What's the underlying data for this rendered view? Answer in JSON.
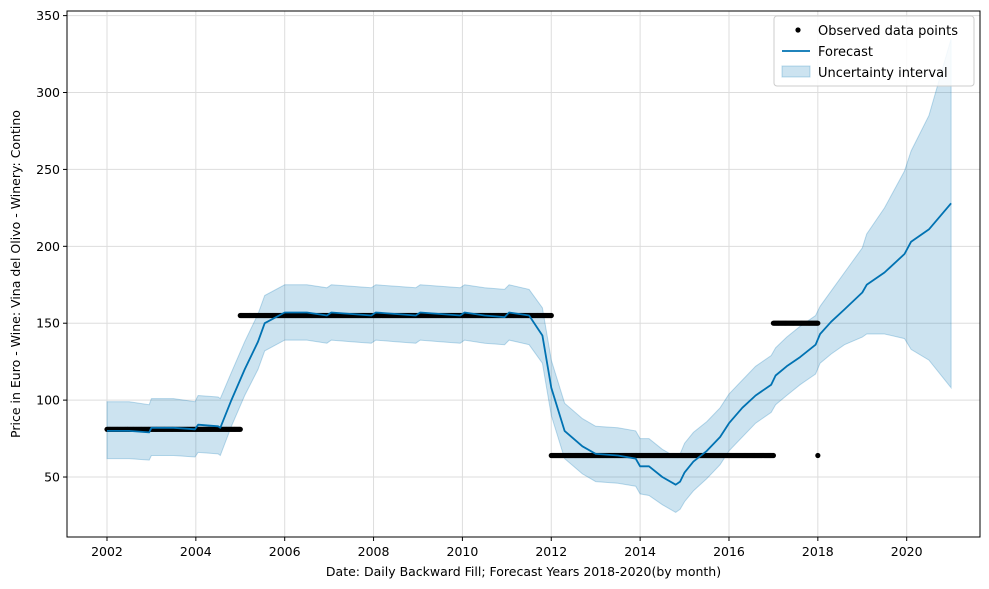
{
  "chart_data": {
    "type": "line",
    "title": "",
    "xlabel": "Date: Daily Backward Fill; Forecast Years 2018-2020(by month)",
    "ylabel": "Price in Euro - Wine: Vina del Olivo - Winery: Contino",
    "xlim": [
      2001.1,
      2021.65
    ],
    "ylim": [
      11,
      353
    ],
    "x_ticks": [
      2002,
      2004,
      2006,
      2008,
      2010,
      2012,
      2014,
      2016,
      2018,
      2020
    ],
    "x_tick_labels": [
      "2002",
      "2004",
      "2006",
      "2008",
      "2010",
      "2012",
      "2014",
      "2016",
      "2018",
      "2020"
    ],
    "y_ticks": [
      50,
      100,
      150,
      200,
      250,
      300,
      350
    ],
    "y_tick_labels": [
      "50",
      "100",
      "150",
      "200",
      "250",
      "300",
      "350"
    ],
    "grid": true,
    "legend_position": "top-right",
    "colors": {
      "observed": "#000000",
      "forecast": "#0072B2",
      "band_fill": "#0072B2",
      "grid": "#dddddd"
    },
    "series": [
      {
        "name": "Observed data points",
        "kind": "scatter",
        "segments": [
          {
            "x_start": 2002.0,
            "x_end": 2005.0,
            "y": 81
          },
          {
            "x_start": 2005.0,
            "x_end": 2012.0,
            "y": 155
          },
          {
            "x_start": 2012.0,
            "x_end": 2017.0,
            "y": 64
          },
          {
            "x_start": 2017.0,
            "x_end": 2018.0,
            "y": 150
          }
        ],
        "points": [
          {
            "x": 2018.0,
            "y": 64
          }
        ]
      },
      {
        "name": "Forecast",
        "kind": "line",
        "x": [
          2002.0,
          2002.5,
          2002.95,
          2003.0,
          2003.5,
          2003.98,
          2004.05,
          2004.5,
          2004.55,
          2004.8,
          2005.1,
          2005.4,
          2005.55,
          2006.0,
          2006.5,
          2006.95,
          2007.05,
          2007.5,
          2007.95,
          2008.05,
          2008.5,
          2008.95,
          2009.05,
          2009.5,
          2009.95,
          2010.05,
          2010.5,
          2010.95,
          2011.05,
          2011.5,
          2011.8,
          2012.0,
          2012.3,
          2012.7,
          2013.0,
          2013.5,
          2013.9,
          2014.0,
          2014.2,
          2014.5,
          2014.8,
          2014.9,
          2015.0,
          2015.2,
          2015.5,
          2015.8,
          2016.0,
          2016.3,
          2016.6,
          2016.95,
          2017.05,
          2017.3,
          2017.6,
          2017.95,
          2018.05,
          2018.3,
          2018.6,
          2019.0,
          2019.1,
          2019.5,
          2019.95,
          2020.1,
          2020.5,
          2021.0
        ],
        "y": [
          80,
          80,
          79,
          82,
          82,
          81,
          84,
          83,
          82,
          100,
          120,
          138,
          150,
          157,
          157,
          155,
          157,
          156,
          155,
          157,
          156,
          155,
          157,
          156,
          155,
          157,
          155,
          154,
          157,
          155,
          142,
          108,
          80,
          70,
          65,
          64,
          62,
          57,
          57,
          50,
          45,
          47,
          53,
          60,
          67,
          76,
          85,
          95,
          103,
          110,
          116,
          122,
          128,
          136,
          143,
          151,
          159,
          170,
          175,
          183,
          195,
          203,
          211,
          228
        ]
      },
      {
        "name": "Uncertainty interval",
        "kind": "band",
        "x": [
          2002.0,
          2002.5,
          2002.95,
          2003.0,
          2003.5,
          2003.98,
          2004.05,
          2004.5,
          2004.55,
          2004.8,
          2005.1,
          2005.4,
          2005.55,
          2006.0,
          2006.5,
          2006.95,
          2007.05,
          2007.5,
          2007.95,
          2008.05,
          2008.5,
          2008.95,
          2009.05,
          2009.5,
          2009.95,
          2010.05,
          2010.5,
          2010.95,
          2011.05,
          2011.5,
          2011.8,
          2012.0,
          2012.3,
          2012.7,
          2013.0,
          2013.5,
          2013.9,
          2014.0,
          2014.2,
          2014.5,
          2014.8,
          2014.9,
          2015.0,
          2015.2,
          2015.5,
          2015.8,
          2016.0,
          2016.3,
          2016.6,
          2016.95,
          2017.05,
          2017.3,
          2017.6,
          2017.95,
          2018.05,
          2018.3,
          2018.6,
          2019.0,
          2019.1,
          2019.5,
          2019.95,
          2020.1,
          2020.5,
          2021.0
        ],
        "lower": [
          62,
          62,
          61,
          64,
          64,
          63,
          66,
          65,
          64,
          83,
          103,
          120,
          132,
          139,
          139,
          137,
          139,
          138,
          137,
          139,
          138,
          137,
          139,
          138,
          137,
          139,
          137,
          136,
          139,
          136,
          124,
          90,
          62,
          52,
          47,
          46,
          44,
          39,
          38,
          32,
          27,
          29,
          34,
          41,
          49,
          58,
          67,
          76,
          85,
          92,
          97,
          103,
          110,
          117,
          124,
          130,
          136,
          141,
          143,
          143,
          140,
          133,
          126,
          108
        ],
        "upper": [
          99,
          99,
          97,
          101,
          101,
          99,
          103,
          102,
          101,
          118,
          138,
          156,
          168,
          175,
          175,
          173,
          175,
          174,
          173,
          175,
          174,
          173,
          175,
          174,
          173,
          175,
          173,
          172,
          175,
          172,
          160,
          126,
          98,
          88,
          83,
          82,
          80,
          75,
          75,
          68,
          63,
          65,
          72,
          79,
          86,
          95,
          104,
          113,
          122,
          129,
          134,
          141,
          148,
          155,
          161,
          171,
          183,
          199,
          208,
          225,
          249,
          262,
          285,
          335
        ]
      }
    ]
  }
}
